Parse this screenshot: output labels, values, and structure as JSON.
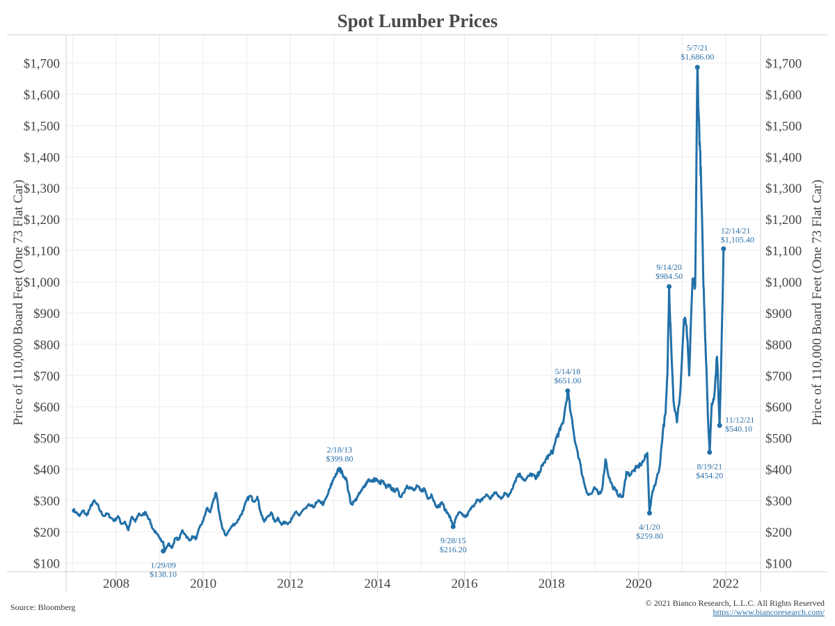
{
  "chart_data": {
    "type": "line",
    "title": "Spot Lumber Prices",
    "ylabel": "Price of 110,000 Board Feet (One 73 Flat Car)",
    "xlim": [
      2006.85,
      2022.8
    ],
    "ylim": [
      72,
      1790
    ],
    "x_ticks": [
      {
        "value": 2008,
        "label": "2008"
      },
      {
        "value": 2010,
        "label": "2010"
      },
      {
        "value": 2012,
        "label": "2012"
      },
      {
        "value": 2014,
        "label": "2014"
      },
      {
        "value": 2016,
        "label": "2016"
      },
      {
        "value": 2018,
        "label": "2018"
      },
      {
        "value": 2020,
        "label": "2020"
      },
      {
        "value": 2022,
        "label": "2022"
      }
    ],
    "y_ticks": [
      {
        "value": 100,
        "label": "$100"
      },
      {
        "value": 200,
        "label": "$200"
      },
      {
        "value": 300,
        "label": "$300"
      },
      {
        "value": 400,
        "label": "$400"
      },
      {
        "value": 500,
        "label": "$500"
      },
      {
        "value": 600,
        "label": "$600"
      },
      {
        "value": 700,
        "label": "$700"
      },
      {
        "value": 800,
        "label": "$800"
      },
      {
        "value": 900,
        "label": "$900"
      },
      {
        "value": 1000,
        "label": "$1,000"
      },
      {
        "value": 1100,
        "label": "$1,100"
      },
      {
        "value": 1200,
        "label": "$1,200"
      },
      {
        "value": 1300,
        "label": "$1,300"
      },
      {
        "value": 1400,
        "label": "$1,400"
      },
      {
        "value": 1500,
        "label": "$1,500"
      },
      {
        "value": 1600,
        "label": "$1,600"
      },
      {
        "value": 1700,
        "label": "$1,700"
      }
    ],
    "color": "#2170a8",
    "points": [
      [
        2007.0,
        272
      ],
      [
        2007.08,
        262
      ],
      [
        2007.16,
        250
      ],
      [
        2007.24,
        268
      ],
      [
        2007.32,
        252
      ],
      [
        2007.4,
        275
      ],
      [
        2007.48,
        298
      ],
      [
        2007.56,
        288
      ],
      [
        2007.64,
        265
      ],
      [
        2007.72,
        250
      ],
      [
        2007.8,
        258
      ],
      [
        2007.88,
        245
      ],
      [
        2007.96,
        235
      ],
      [
        2008.04,
        250
      ],
      [
        2008.12,
        225
      ],
      [
        2008.2,
        232
      ],
      [
        2008.28,
        205
      ],
      [
        2008.36,
        248
      ],
      [
        2008.44,
        232
      ],
      [
        2008.52,
        258
      ],
      [
        2008.6,
        252
      ],
      [
        2008.68,
        262
      ],
      [
        2008.76,
        240
      ],
      [
        2008.84,
        210
      ],
      [
        2008.92,
        195
      ],
      [
        2009.0,
        178
      ],
      [
        2009.08,
        168
      ],
      [
        2009.12,
        138
      ],
      [
        2009.2,
        162
      ],
      [
        2009.28,
        148
      ],
      [
        2009.36,
        180
      ],
      [
        2009.44,
        175
      ],
      [
        2009.52,
        205
      ],
      [
        2009.6,
        188
      ],
      [
        2009.68,
        172
      ],
      [
        2009.76,
        185
      ],
      [
        2009.84,
        178
      ],
      [
        2009.92,
        215
      ],
      [
        2010.0,
        235
      ],
      [
        2010.08,
        275
      ],
      [
        2010.16,
        262
      ],
      [
        2010.24,
        305
      ],
      [
        2010.3,
        322
      ],
      [
        2010.36,
        265
      ],
      [
        2010.44,
        210
      ],
      [
        2010.52,
        188
      ],
      [
        2010.6,
        205
      ],
      [
        2010.68,
        222
      ],
      [
        2010.76,
        228
      ],
      [
        2010.84,
        248
      ],
      [
        2010.92,
        268
      ],
      [
        2011.0,
        302
      ],
      [
        2011.08,
        315
      ],
      [
        2011.16,
        298
      ],
      [
        2011.24,
        312
      ],
      [
        2011.32,
        262
      ],
      [
        2011.4,
        232
      ],
      [
        2011.48,
        248
      ],
      [
        2011.56,
        262
      ],
      [
        2011.64,
        232
      ],
      [
        2011.72,
        245
      ],
      [
        2011.8,
        222
      ],
      [
        2011.88,
        232
      ],
      [
        2011.96,
        228
      ],
      [
        2012.04,
        242
      ],
      [
        2012.12,
        262
      ],
      [
        2012.2,
        252
      ],
      [
        2012.28,
        268
      ],
      [
        2012.36,
        275
      ],
      [
        2012.44,
        285
      ],
      [
        2012.52,
        278
      ],
      [
        2012.6,
        292
      ],
      [
        2012.68,
        298
      ],
      [
        2012.76,
        288
      ],
      [
        2012.84,
        312
      ],
      [
        2012.92,
        342
      ],
      [
        2013.0,
        372
      ],
      [
        2013.08,
        392
      ],
      [
        2013.13,
        400
      ],
      [
        2013.2,
        385
      ],
      [
        2013.28,
        372
      ],
      [
        2013.34,
        325
      ],
      [
        2013.4,
        288
      ],
      [
        2013.48,
        298
      ],
      [
        2013.56,
        315
      ],
      [
        2013.64,
        332
      ],
      [
        2013.72,
        352
      ],
      [
        2013.8,
        368
      ],
      [
        2013.88,
        360
      ],
      [
        2013.96,
        370
      ],
      [
        2014.04,
        355
      ],
      [
        2014.12,
        362
      ],
      [
        2014.2,
        340
      ],
      [
        2014.28,
        350
      ],
      [
        2014.36,
        330
      ],
      [
        2014.44,
        338
      ],
      [
        2014.52,
        312
      ],
      [
        2014.6,
        325
      ],
      [
        2014.68,
        348
      ],
      [
        2014.76,
        340
      ],
      [
        2014.84,
        332
      ],
      [
        2014.92,
        345
      ],
      [
        2015.0,
        330
      ],
      [
        2015.08,
        338
      ],
      [
        2015.16,
        305
      ],
      [
        2015.24,
        320
      ],
      [
        2015.32,
        290
      ],
      [
        2015.4,
        278
      ],
      [
        2015.48,
        295
      ],
      [
        2015.56,
        268
      ],
      [
        2015.64,
        255
      ],
      [
        2015.68,
        242
      ],
      [
        2015.74,
        216
      ],
      [
        2015.8,
        242
      ],
      [
        2015.88,
        262
      ],
      [
        2015.96,
        252
      ],
      [
        2016.04,
        248
      ],
      [
        2016.12,
        268
      ],
      [
        2016.2,
        282
      ],
      [
        2016.28,
        302
      ],
      [
        2016.36,
        295
      ],
      [
        2016.44,
        310
      ],
      [
        2016.52,
        318
      ],
      [
        2016.6,
        305
      ],
      [
        2016.68,
        325
      ],
      [
        2016.76,
        318
      ],
      [
        2016.84,
        305
      ],
      [
        2016.92,
        325
      ],
      [
        2017.0,
        312
      ],
      [
        2017.08,
        335
      ],
      [
        2017.16,
        362
      ],
      [
        2017.24,
        385
      ],
      [
        2017.32,
        375
      ],
      [
        2017.4,
        365
      ],
      [
        2017.48,
        378
      ],
      [
        2017.56,
        385
      ],
      [
        2017.64,
        368
      ],
      [
        2017.72,
        392
      ],
      [
        2017.8,
        412
      ],
      [
        2017.88,
        435
      ],
      [
        2017.96,
        445
      ],
      [
        2018.04,
        462
      ],
      [
        2018.12,
        505
      ],
      [
        2018.2,
        525
      ],
      [
        2018.28,
        560
      ],
      [
        2018.37,
        651
      ],
      [
        2018.44,
        580
      ],
      [
        2018.52,
        505
      ],
      [
        2018.6,
        455
      ],
      [
        2018.68,
        400
      ],
      [
        2018.76,
        350
      ],
      [
        2018.84,
        318
      ],
      [
        2018.92,
        322
      ],
      [
        2019.0,
        340
      ],
      [
        2019.08,
        320
      ],
      [
        2019.16,
        335
      ],
      [
        2019.24,
        432
      ],
      [
        2019.32,
        372
      ],
      [
        2019.4,
        345
      ],
      [
        2019.48,
        330
      ],
      [
        2019.56,
        315
      ],
      [
        2019.64,
        312
      ],
      [
        2019.72,
        392
      ],
      [
        2019.8,
        382
      ],
      [
        2019.88,
        395
      ],
      [
        2019.96,
        405
      ],
      [
        2020.04,
        415
      ],
      [
        2020.12,
        428
      ],
      [
        2020.2,
        452
      ],
      [
        2020.25,
        259.8
      ],
      [
        2020.32,
        330
      ],
      [
        2020.4,
        362
      ],
      [
        2020.48,
        405
      ],
      [
        2020.56,
        525
      ],
      [
        2020.62,
        580
      ],
      [
        2020.66,
        700
      ],
      [
        2020.7,
        984.5
      ],
      [
        2020.74,
        830
      ],
      [
        2020.8,
        620
      ],
      [
        2020.88,
        550
      ],
      [
        2020.96,
        655
      ],
      [
        2021.04,
        880
      ],
      [
        2021.1,
        860
      ],
      [
        2021.16,
        700
      ],
      [
        2021.24,
        1010
      ],
      [
        2021.3,
        985
      ],
      [
        2021.35,
        1686
      ],
      [
        2021.38,
        1530
      ],
      [
        2021.41,
        1420
      ],
      [
        2021.44,
        1290
      ],
      [
        2021.48,
        1040
      ],
      [
        2021.52,
        860
      ],
      [
        2021.56,
        715
      ],
      [
        2021.6,
        540
      ],
      [
        2021.63,
        454.2
      ],
      [
        2021.68,
        610
      ],
      [
        2021.74,
        640
      ],
      [
        2021.8,
        760
      ],
      [
        2021.86,
        540.1
      ],
      [
        2021.9,
        770
      ],
      [
        2021.95,
        1105.4
      ]
    ],
    "annotations": [
      {
        "x": 2009.08,
        "y": 138.1,
        "date": "1/29/09",
        "value": "$138.10",
        "pos": "below"
      },
      {
        "x": 2013.13,
        "y": 399.8,
        "date": "2/18/13",
        "value": "$399.80",
        "pos": "above"
      },
      {
        "x": 2015.74,
        "y": 216.2,
        "date": "9/28/15",
        "value": "$216.20",
        "pos": "below"
      },
      {
        "x": 2018.37,
        "y": 651.0,
        "date": "5/14/18",
        "value": "$651.00",
        "pos": "above"
      },
      {
        "x": 2020.25,
        "y": 259.8,
        "date": "4/1/20",
        "value": "$259.80",
        "pos": "below"
      },
      {
        "x": 2020.7,
        "y": 984.5,
        "date": "9/14/20",
        "value": "$984.50",
        "pos": "above"
      },
      {
        "x": 2021.35,
        "y": 1686.0,
        "date": "5/7/21",
        "value": "$1,686.00",
        "pos": "above"
      },
      {
        "x": 2021.63,
        "y": 454.2,
        "date": "8/19/21",
        "value": "$454.20",
        "pos": "below"
      },
      {
        "x": 2021.86,
        "y": 540.1,
        "date": "11/12/21",
        "value": "$540.10",
        "pos": "right"
      },
      {
        "x": 2021.95,
        "y": 1105.4,
        "date": "12/14/21",
        "value": "$1,105.40",
        "pos": "above-right"
      }
    ],
    "grid": true
  },
  "footer": {
    "source": "Source: Bloomberg",
    "copyright": "© 2021 Bianco Research, L.L.C. All Rights Reserved",
    "url": "https://www.biancoresearch.com/"
  }
}
